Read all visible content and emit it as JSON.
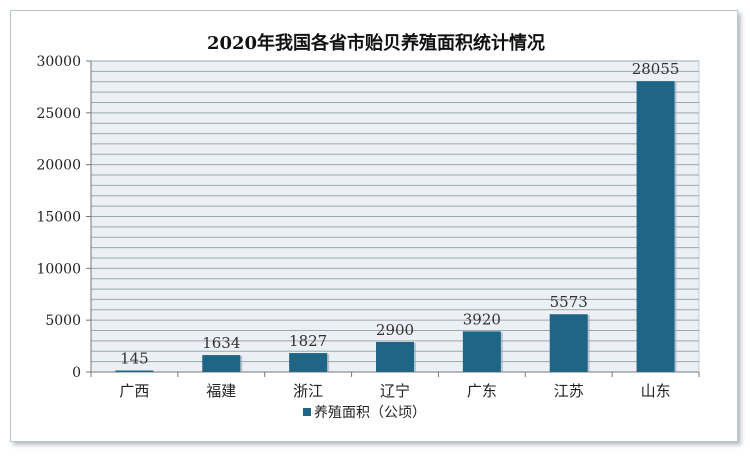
{
  "chart_data": {
    "type": "bar",
    "title": "2020年我国各省市贻贝养殖面积统计情况",
    "categories": [
      "广西",
      "福建",
      "浙江",
      "辽宁",
      "广东",
      "江苏",
      "山东"
    ],
    "series": [
      {
        "name": "养殖面积（公顷）",
        "values": [
          145,
          1634,
          1827,
          2900,
          3920,
          5573,
          28055
        ],
        "color": "#1f6585"
      }
    ],
    "ylim": [
      0,
      30000
    ],
    "yticks": [
      0,
      5000,
      10000,
      15000,
      20000,
      25000,
      30000
    ],
    "grid": true,
    "plot_background": "#eceff3",
    "grid_color": "#99a8b3",
    "legend_position": "bottom",
    "data_labels": true
  }
}
